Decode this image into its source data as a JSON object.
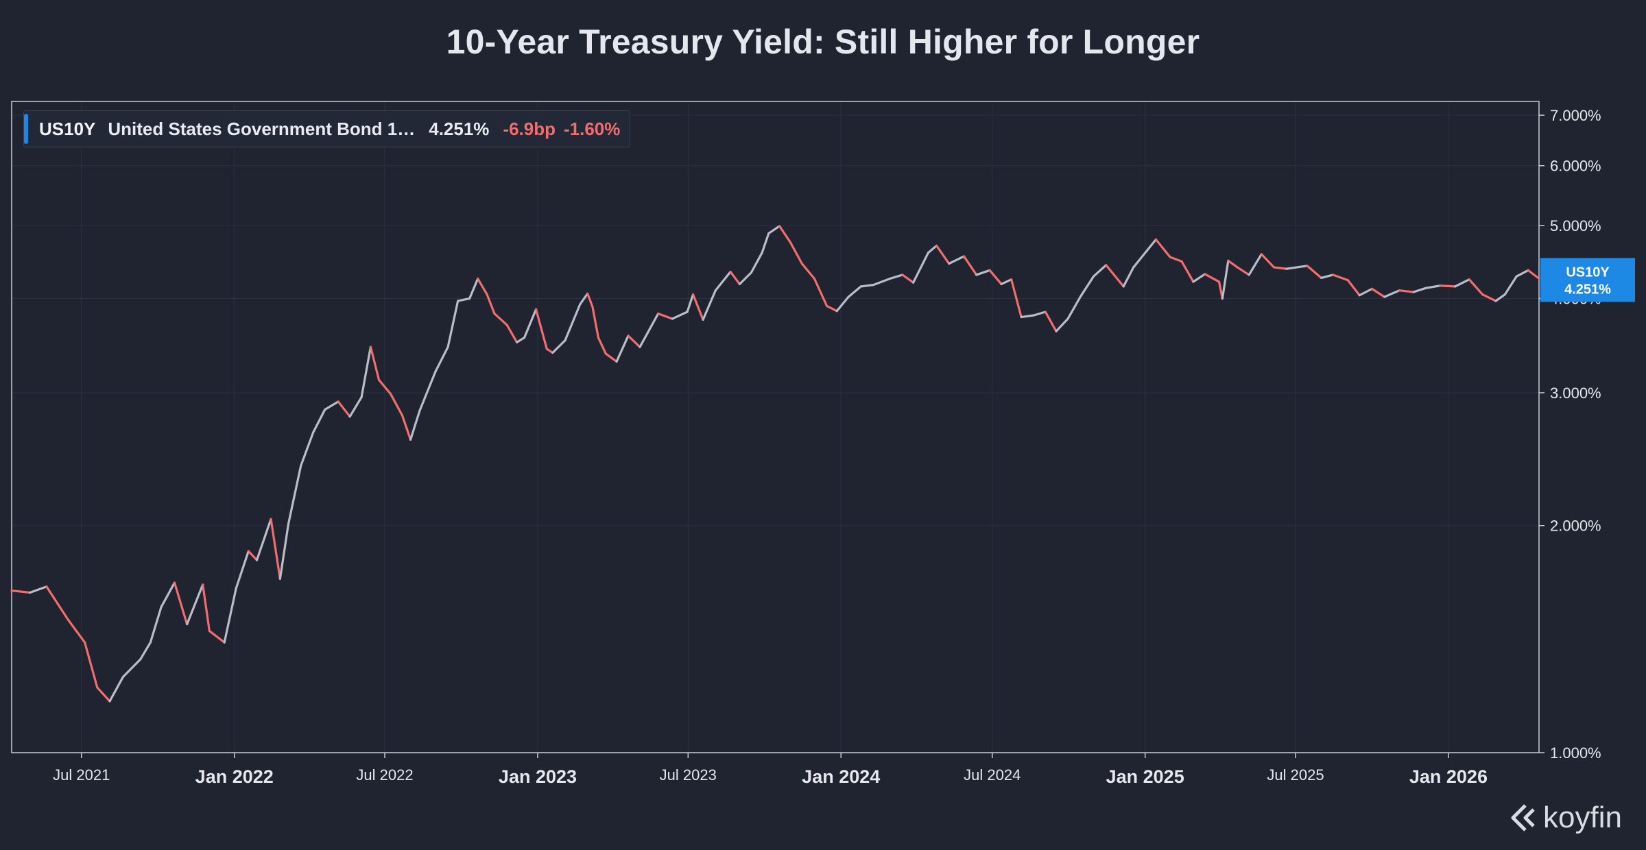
{
  "header": {
    "title": "10-Year Treasury Yield: Still Higher for Longer"
  },
  "legend": {
    "ticker": "US10Y",
    "name": "United States Government Bond 1…",
    "value": "4.251%",
    "change_bp": "-6.9bp",
    "change_pct": "-1.60%"
  },
  "price_label": {
    "ticker": "US10Y",
    "value": "4.251%"
  },
  "brand": {
    "name": "koyfin"
  },
  "colors": {
    "background": "#1f2430",
    "down": "#f26d6d",
    "up": "#b8bec9",
    "accent": "#1e88e5"
  },
  "chart_data": {
    "type": "line",
    "style": "candlestick",
    "scale": "log",
    "grid": true,
    "y_tick_labels": [
      "1.000%",
      "2.000%",
      "3.000%",
      "4.000%",
      "5.000%",
      "6.000%",
      "7.000%"
    ],
    "y_ticks": [
      1,
      2,
      3,
      4,
      5,
      6,
      7
    ],
    "ylim": [
      1.0,
      7.3
    ],
    "x_tick_labels": [
      "Jul 2021",
      "Jan 2022",
      "Jul 2022",
      "Jan 2023",
      "Jul 2023",
      "Jan 2024",
      "Jul 2024",
      "Jan 2025",
      "Jul 2025",
      "Jan 2026"
    ],
    "x_ticks": [
      "2021-07-01",
      "2022-01-01",
      "2022-07-01",
      "2023-01-01",
      "2023-07-01",
      "2024-01-01",
      "2024-07-01",
      "2025-01-01",
      "2025-07-01",
      "2026-01-01"
    ],
    "xlim": [
      "2021-04-08",
      "2026-04-20"
    ],
    "series": [
      {
        "x": [
          "2021-04-08",
          "2021-04-30",
          "2021-05-20",
          "2021-06-15",
          "2021-07-05",
          "2021-07-20",
          "2021-08-04",
          "2021-08-20",
          "2021-09-10",
          "2021-09-22",
          "2021-10-05",
          "2021-10-21",
          "2021-11-05",
          "2021-11-24",
          "2021-12-02",
          "2021-12-20",
          "2022-01-03",
          "2022-01-18",
          "2022-01-28",
          "2022-02-14",
          "2022-02-25",
          "2022-03-07",
          "2022-03-22",
          "2022-04-06",
          "2022-04-20",
          "2022-05-06",
          "2022-05-20",
          "2022-06-03",
          "2022-06-14",
          "2022-06-24",
          "2022-07-08",
          "2022-07-22",
          "2022-08-01",
          "2022-08-12",
          "2022-08-31",
          "2022-09-15",
          "2022-09-27",
          "2022-10-11",
          "2022-10-21",
          "2022-11-01",
          "2022-11-10",
          "2022-11-25",
          "2022-12-07",
          "2022-12-16",
          "2022-12-30",
          "2023-01-12",
          "2023-01-19",
          "2023-02-03",
          "2023-02-21",
          "2023-03-02",
          "2023-03-08",
          "2023-03-15",
          "2023-03-24",
          "2023-04-06",
          "2023-04-20",
          "2023-05-04",
          "2023-05-26",
          "2023-06-12",
          "2023-06-30",
          "2023-07-07",
          "2023-07-19",
          "2023-08-03",
          "2023-08-21",
          "2023-09-01",
          "2023-09-15",
          "2023-09-28",
          "2023-10-06",
          "2023-10-19",
          "2023-11-01",
          "2023-11-15",
          "2023-11-30",
          "2023-12-15",
          "2023-12-27",
          "2024-01-10",
          "2024-01-25",
          "2024-02-09",
          "2024-02-29",
          "2024-03-15",
          "2024-03-28",
          "2024-04-15",
          "2024-04-25",
          "2024-05-10",
          "2024-05-28",
          "2024-06-12",
          "2024-06-28",
          "2024-07-12",
          "2024-07-24",
          "2024-08-05",
          "2024-08-20",
          "2024-09-03",
          "2024-09-16",
          "2024-09-30",
          "2024-10-15",
          "2024-10-31",
          "2024-11-15",
          "2024-12-06",
          "2024-12-18",
          "2025-01-14",
          "2025-01-31",
          "2025-02-14",
          "2025-02-28",
          "2025-03-14",
          "2025-03-31",
          "2025-04-04",
          "2025-04-11",
          "2025-04-22",
          "2025-05-06",
          "2025-05-21",
          "2025-06-05",
          "2025-06-20",
          "2025-07-15",
          "2025-08-01",
          "2025-08-15",
          "2025-09-02",
          "2025-09-16",
          "2025-10-01",
          "2025-10-16",
          "2025-11-03",
          "2025-11-20",
          "2025-12-05",
          "2025-12-22",
          "2026-01-09",
          "2026-01-26",
          "2026-02-11",
          "2026-02-27",
          "2026-03-10",
          "2026-03-24",
          "2026-04-07",
          "2026-04-20"
        ],
        "y": [
          1.64,
          1.63,
          1.66,
          1.5,
          1.4,
          1.22,
          1.17,
          1.26,
          1.33,
          1.4,
          1.56,
          1.68,
          1.48,
          1.67,
          1.45,
          1.4,
          1.65,
          1.85,
          1.8,
          2.04,
          1.7,
          2.01,
          2.4,
          2.66,
          2.85,
          2.92,
          2.79,
          2.96,
          3.45,
          3.12,
          2.99,
          2.8,
          2.6,
          2.84,
          3.2,
          3.45,
          3.97,
          4.0,
          4.25,
          4.05,
          3.82,
          3.69,
          3.5,
          3.55,
          3.87,
          3.43,
          3.39,
          3.52,
          3.93,
          4.06,
          3.9,
          3.55,
          3.38,
          3.3,
          3.57,
          3.45,
          3.82,
          3.76,
          3.84,
          4.05,
          3.75,
          4.1,
          4.34,
          4.18,
          4.33,
          4.6,
          4.88,
          4.99,
          4.75,
          4.45,
          4.25,
          3.91,
          3.85,
          4.02,
          4.15,
          4.17,
          4.25,
          4.3,
          4.2,
          4.6,
          4.7,
          4.45,
          4.55,
          4.3,
          4.36,
          4.18,
          4.24,
          3.78,
          3.8,
          3.84,
          3.62,
          3.76,
          4.02,
          4.28,
          4.43,
          4.15,
          4.4,
          4.79,
          4.54,
          4.48,
          4.21,
          4.31,
          4.21,
          4.0,
          4.49,
          4.4,
          4.3,
          4.58,
          4.4,
          4.38,
          4.42,
          4.26,
          4.3,
          4.23,
          4.04,
          4.12,
          4.02,
          4.1,
          4.08,
          4.13,
          4.16,
          4.15,
          4.24,
          4.05,
          3.97,
          4.05,
          4.28,
          4.36,
          4.251
        ]
      }
    ]
  }
}
